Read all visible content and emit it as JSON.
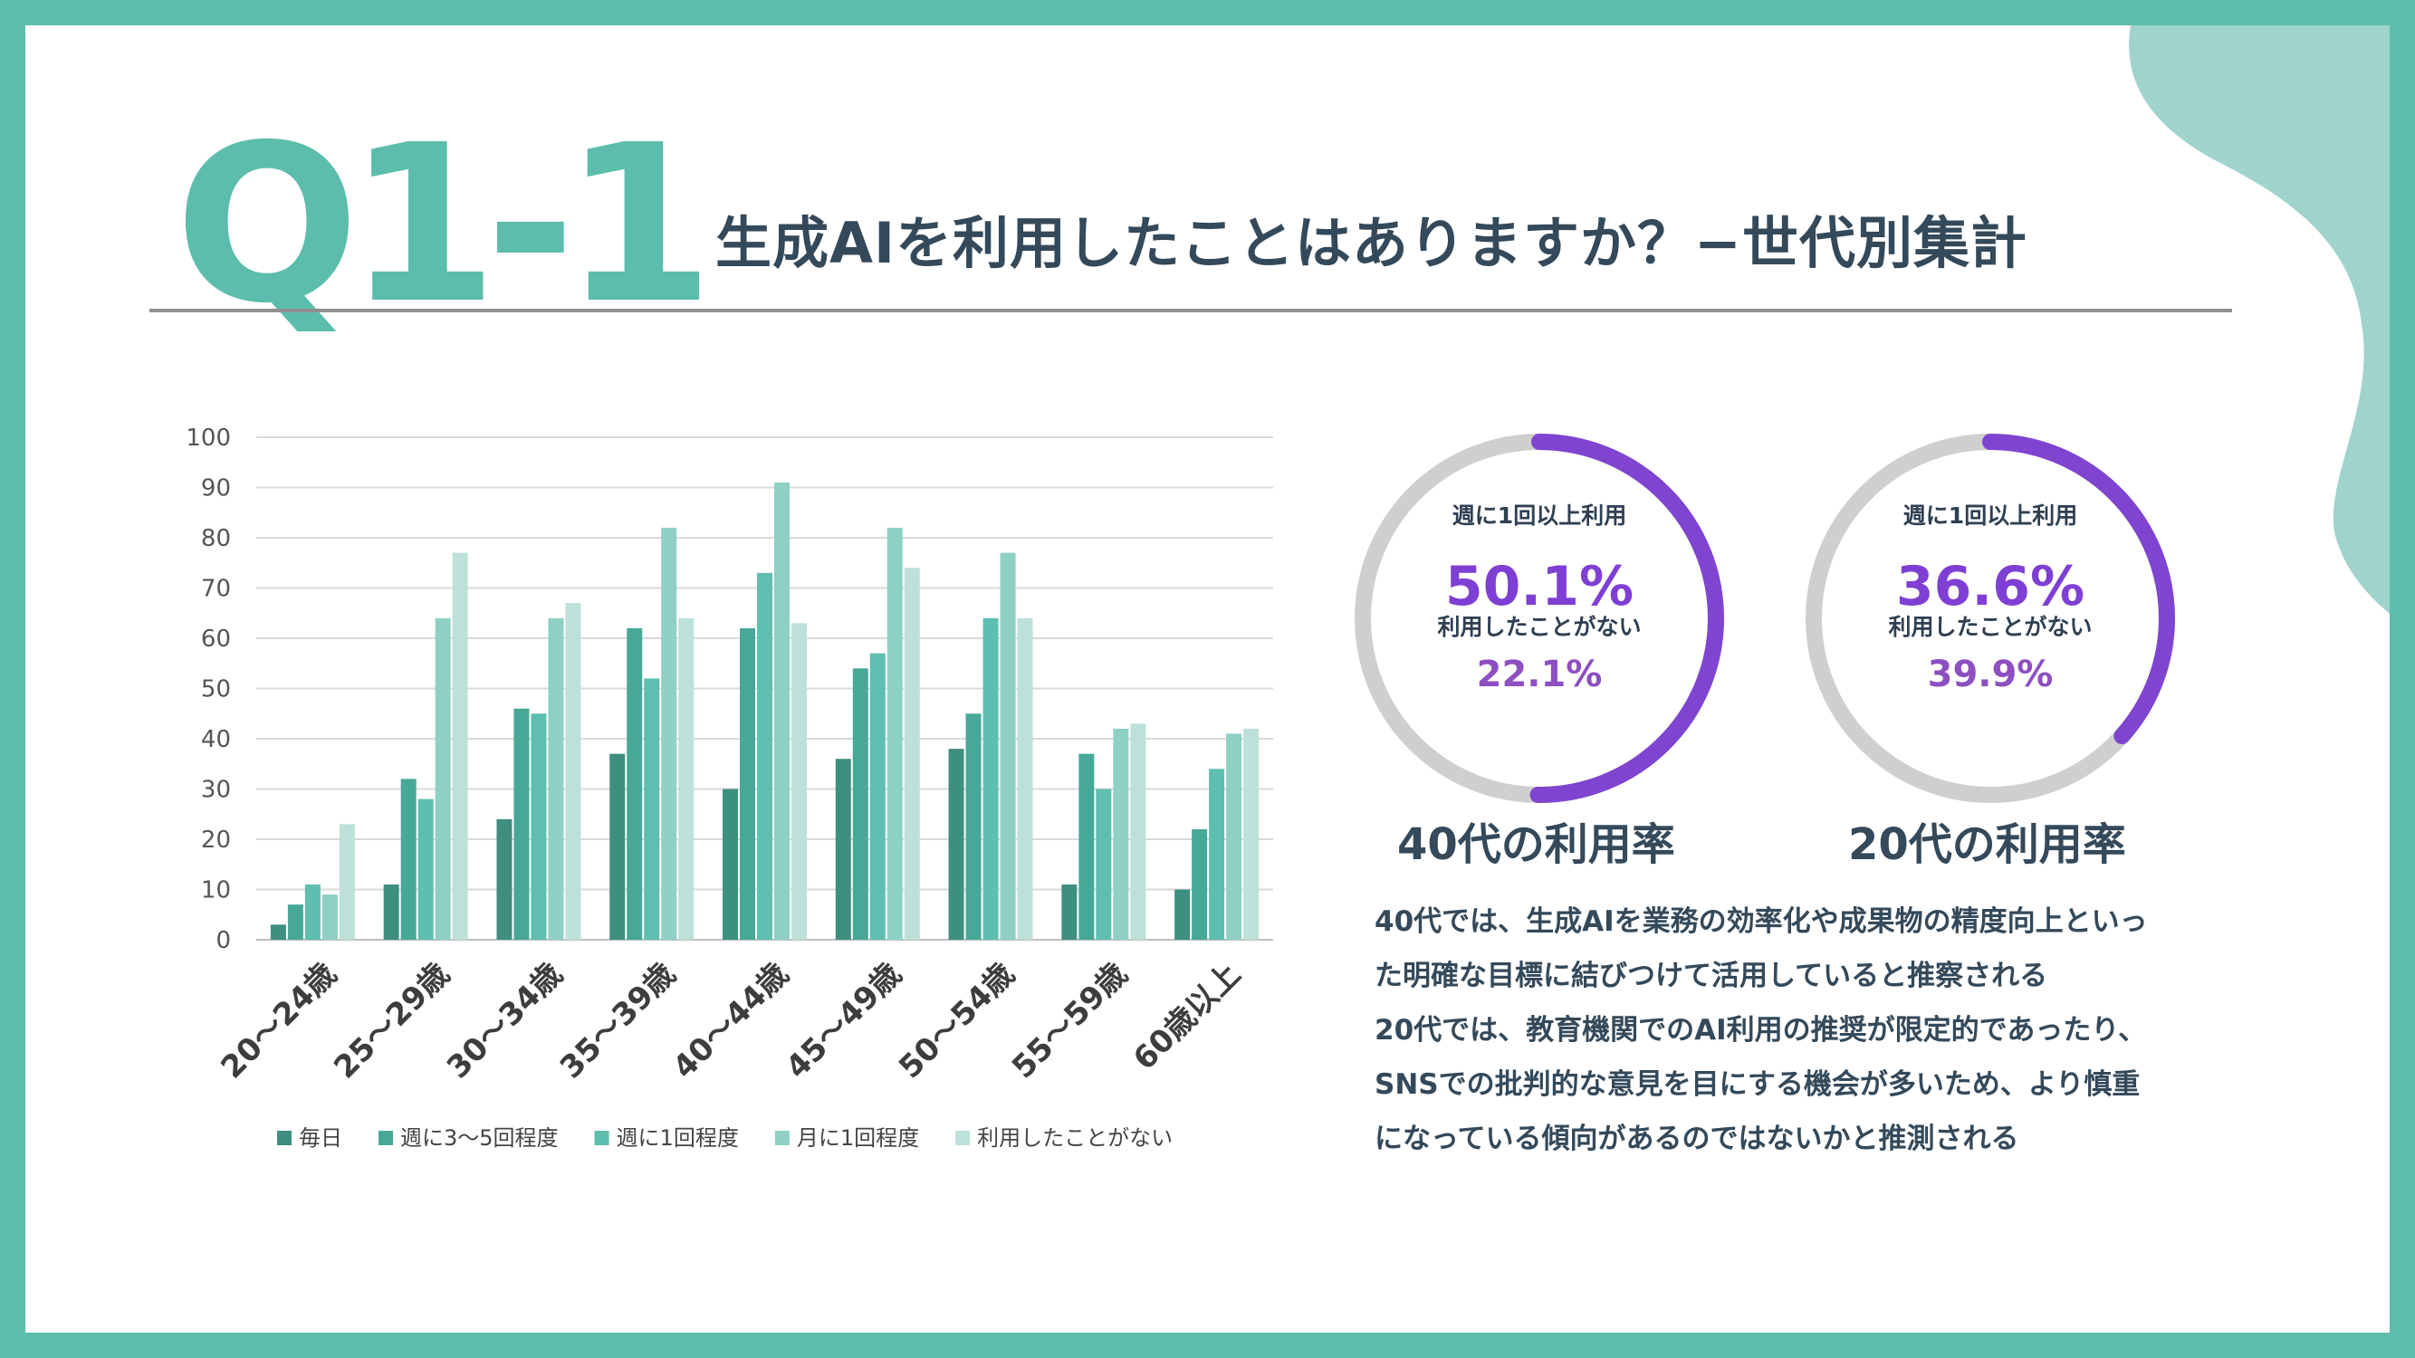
{
  "header": {
    "question_number": "Q1-1",
    "title": "生成AIを利用したことはありますか？−世代別集計"
  },
  "colors": {
    "frame": "#5cbdac",
    "blob": "#9fd3cc",
    "heading": "#34495a",
    "donut_purple": "#7f44d0",
    "donut_gray": "#cfcfcf"
  },
  "chart_data": {
    "type": "bar",
    "title": "",
    "xlabel": "",
    "ylabel": "",
    "ylim": [
      0,
      100
    ],
    "yticks": [
      0,
      10,
      20,
      30,
      40,
      50,
      60,
      70,
      80,
      90,
      100
    ],
    "grid": true,
    "legend": "bottom",
    "categories": [
      "20～24歳",
      "25～29歳",
      "30～34歳",
      "35～39歳",
      "40～44歳",
      "45～49歳",
      "50～54歳",
      "55～59歳",
      "60歳以上"
    ],
    "series": [
      {
        "name": "毎日",
        "color": "#3e8f80",
        "values": [
          3,
          11,
          24,
          37,
          30,
          36,
          38,
          11,
          10
        ]
      },
      {
        "name": "週に3～5回程度",
        "color": "#48a898",
        "values": [
          7,
          32,
          46,
          62,
          62,
          54,
          45,
          37,
          22
        ]
      },
      {
        "name": "週に1回程度",
        "color": "#5ebeaf",
        "values": [
          11,
          28,
          45,
          52,
          73,
          57,
          64,
          30,
          34
        ]
      },
      {
        "name": "月に1回程度",
        "color": "#8ed0c4",
        "values": [
          9,
          64,
          64,
          82,
          91,
          82,
          77,
          42,
          41
        ]
      },
      {
        "name": "利用したことがない",
        "color": "#bde0d9",
        "values": [
          23,
          77,
          67,
          64,
          63,
          74,
          64,
          43,
          42
        ]
      }
    ]
  },
  "donuts": [
    {
      "title": "40代の利用率",
      "weekly_label": "週に1回以上利用",
      "weekly_value": "50.1%",
      "weekly_fraction": 0.501,
      "never_label": "利用したことがない",
      "never_value": "22.1%",
      "never_fraction": 0.221
    },
    {
      "title": "20代の利用率",
      "weekly_label": "週に1回以上利用",
      "weekly_value": "36.6%",
      "weekly_fraction": 0.366,
      "never_label": "利用したことがない",
      "never_value": "39.9%",
      "never_fraction": 0.399
    }
  ],
  "description": [
    "40代では、生成AIを業務の効率化や成果物の精度向上といっ",
    "た明確な目標に結びつけて活用していると推察される",
    "20代では、教育機関でのAI利用の推奨が限定的であったり、",
    "SNSでの批判的な意見を目にする機会が多いため、より慎重",
    "になっている傾向があるのではないかと推測される"
  ]
}
